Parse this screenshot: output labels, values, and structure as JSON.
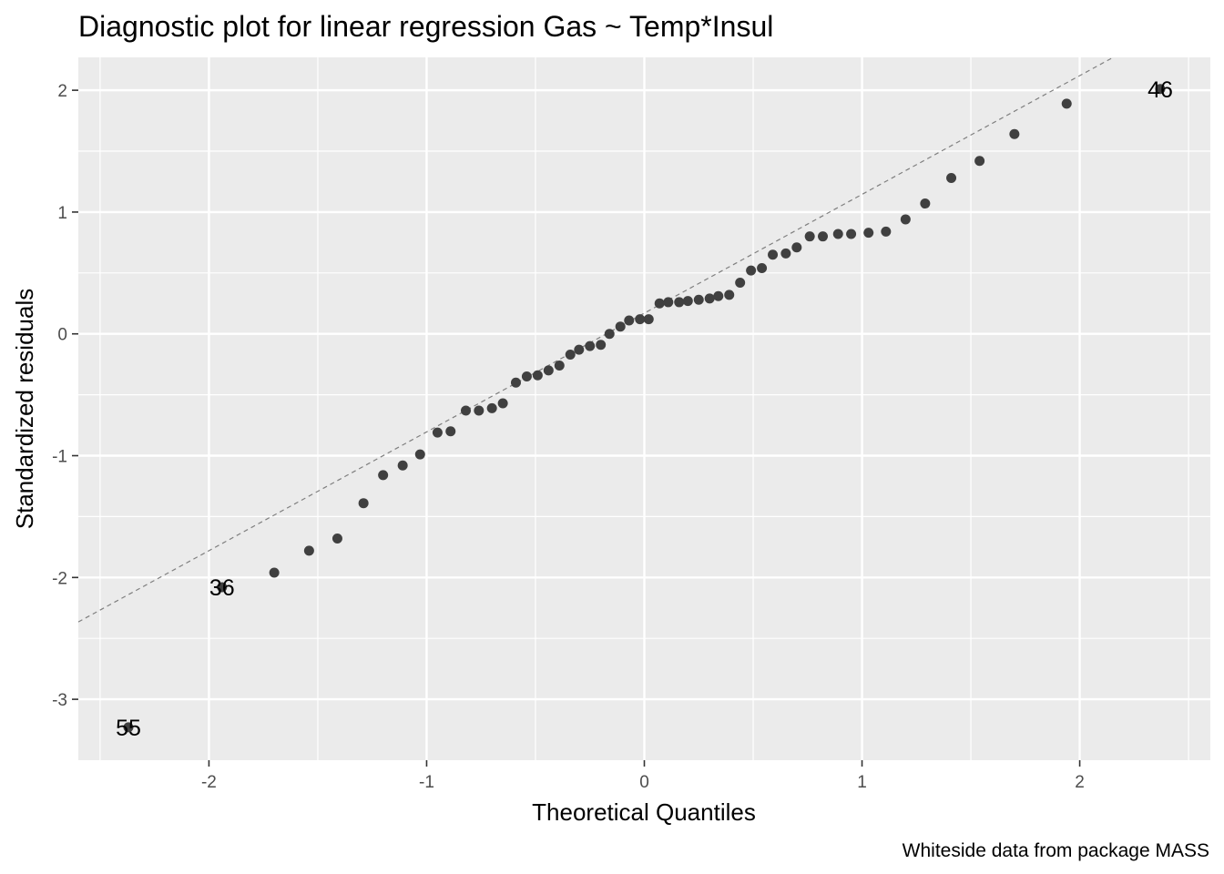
{
  "chart_data": {
    "type": "scatter",
    "title": "Diagnostic plot for linear regression  Gas ~ Temp*Insul",
    "xlabel": "Theoretical Quantiles",
    "ylabel": "Standardized residuals",
    "caption": "Whiteside data from package MASS",
    "xlim": [
      -2.6,
      2.6
    ],
    "ylim": [
      -3.5,
      2.27
    ],
    "x_ticks": [
      -2,
      -1,
      0,
      1,
      2
    ],
    "x_tick_labels": [
      "-2",
      "-1",
      "0",
      "1",
      "2"
    ],
    "y_ticks": [
      -3,
      -2,
      -1,
      0,
      1,
      2
    ],
    "y_tick_labels": [
      "-3",
      "-2",
      "-1",
      "0",
      "1",
      "2"
    ],
    "grid": true,
    "reference_line": {
      "style": "dashed",
      "color": "#7f7f7f",
      "slope": 0.975,
      "intercept": 0.17
    },
    "point_color": "#404040",
    "panel_color": "#ebebeb",
    "points": [
      {
        "x": -2.37,
        "y": -3.23
      },
      {
        "x": -1.94,
        "y": -2.08
      },
      {
        "x": -1.7,
        "y": -1.96
      },
      {
        "x": -1.54,
        "y": -1.78
      },
      {
        "x": -1.41,
        "y": -1.68
      },
      {
        "x": -1.29,
        "y": -1.39
      },
      {
        "x": -1.2,
        "y": -1.16
      },
      {
        "x": -1.11,
        "y": -1.08
      },
      {
        "x": -1.03,
        "y": -0.99
      },
      {
        "x": -0.95,
        "y": -0.81
      },
      {
        "x": -0.89,
        "y": -0.8
      },
      {
        "x": -0.82,
        "y": -0.63
      },
      {
        "x": -0.76,
        "y": -0.63
      },
      {
        "x": -0.7,
        "y": -0.61
      },
      {
        "x": -0.65,
        "y": -0.57
      },
      {
        "x": -0.59,
        "y": -0.4
      },
      {
        "x": -0.54,
        "y": -0.35
      },
      {
        "x": -0.49,
        "y": -0.34
      },
      {
        "x": -0.44,
        "y": -0.3
      },
      {
        "x": -0.39,
        "y": -0.26
      },
      {
        "x": -0.34,
        "y": -0.17
      },
      {
        "x": -0.3,
        "y": -0.13
      },
      {
        "x": -0.25,
        "y": -0.1
      },
      {
        "x": -0.2,
        "y": -0.09
      },
      {
        "x": -0.16,
        "y": 0.0
      },
      {
        "x": -0.11,
        "y": 0.06
      },
      {
        "x": -0.07,
        "y": 0.11
      },
      {
        "x": -0.02,
        "y": 0.12
      },
      {
        "x": 0.02,
        "y": 0.12
      },
      {
        "x": 0.07,
        "y": 0.25
      },
      {
        "x": 0.11,
        "y": 0.26
      },
      {
        "x": 0.16,
        "y": 0.26
      },
      {
        "x": 0.2,
        "y": 0.27
      },
      {
        "x": 0.25,
        "y": 0.28
      },
      {
        "x": 0.3,
        "y": 0.29
      },
      {
        "x": 0.34,
        "y": 0.31
      },
      {
        "x": 0.39,
        "y": 0.32
      },
      {
        "x": 0.44,
        "y": 0.42
      },
      {
        "x": 0.49,
        "y": 0.52
      },
      {
        "x": 0.54,
        "y": 0.54
      },
      {
        "x": 0.59,
        "y": 0.65
      },
      {
        "x": 0.65,
        "y": 0.66
      },
      {
        "x": 0.7,
        "y": 0.71
      },
      {
        "x": 0.76,
        "y": 0.8
      },
      {
        "x": 0.82,
        "y": 0.8
      },
      {
        "x": 0.89,
        "y": 0.82
      },
      {
        "x": 0.95,
        "y": 0.82
      },
      {
        "x": 1.03,
        "y": 0.83
      },
      {
        "x": 1.11,
        "y": 0.84
      },
      {
        "x": 1.2,
        "y": 0.94
      },
      {
        "x": 1.29,
        "y": 1.07
      },
      {
        "x": 1.41,
        "y": 1.28
      },
      {
        "x": 1.54,
        "y": 1.42
      },
      {
        "x": 1.7,
        "y": 1.64
      },
      {
        "x": 1.94,
        "y": 1.89
      },
      {
        "x": 2.37,
        "y": 2.01
      }
    ],
    "point_labels": [
      {
        "text": "55",
        "x": -2.37,
        "y": -3.23
      },
      {
        "text": "36",
        "x": -1.94,
        "y": -2.08
      },
      {
        "text": "46",
        "x": 2.37,
        "y": 2.01
      }
    ]
  }
}
